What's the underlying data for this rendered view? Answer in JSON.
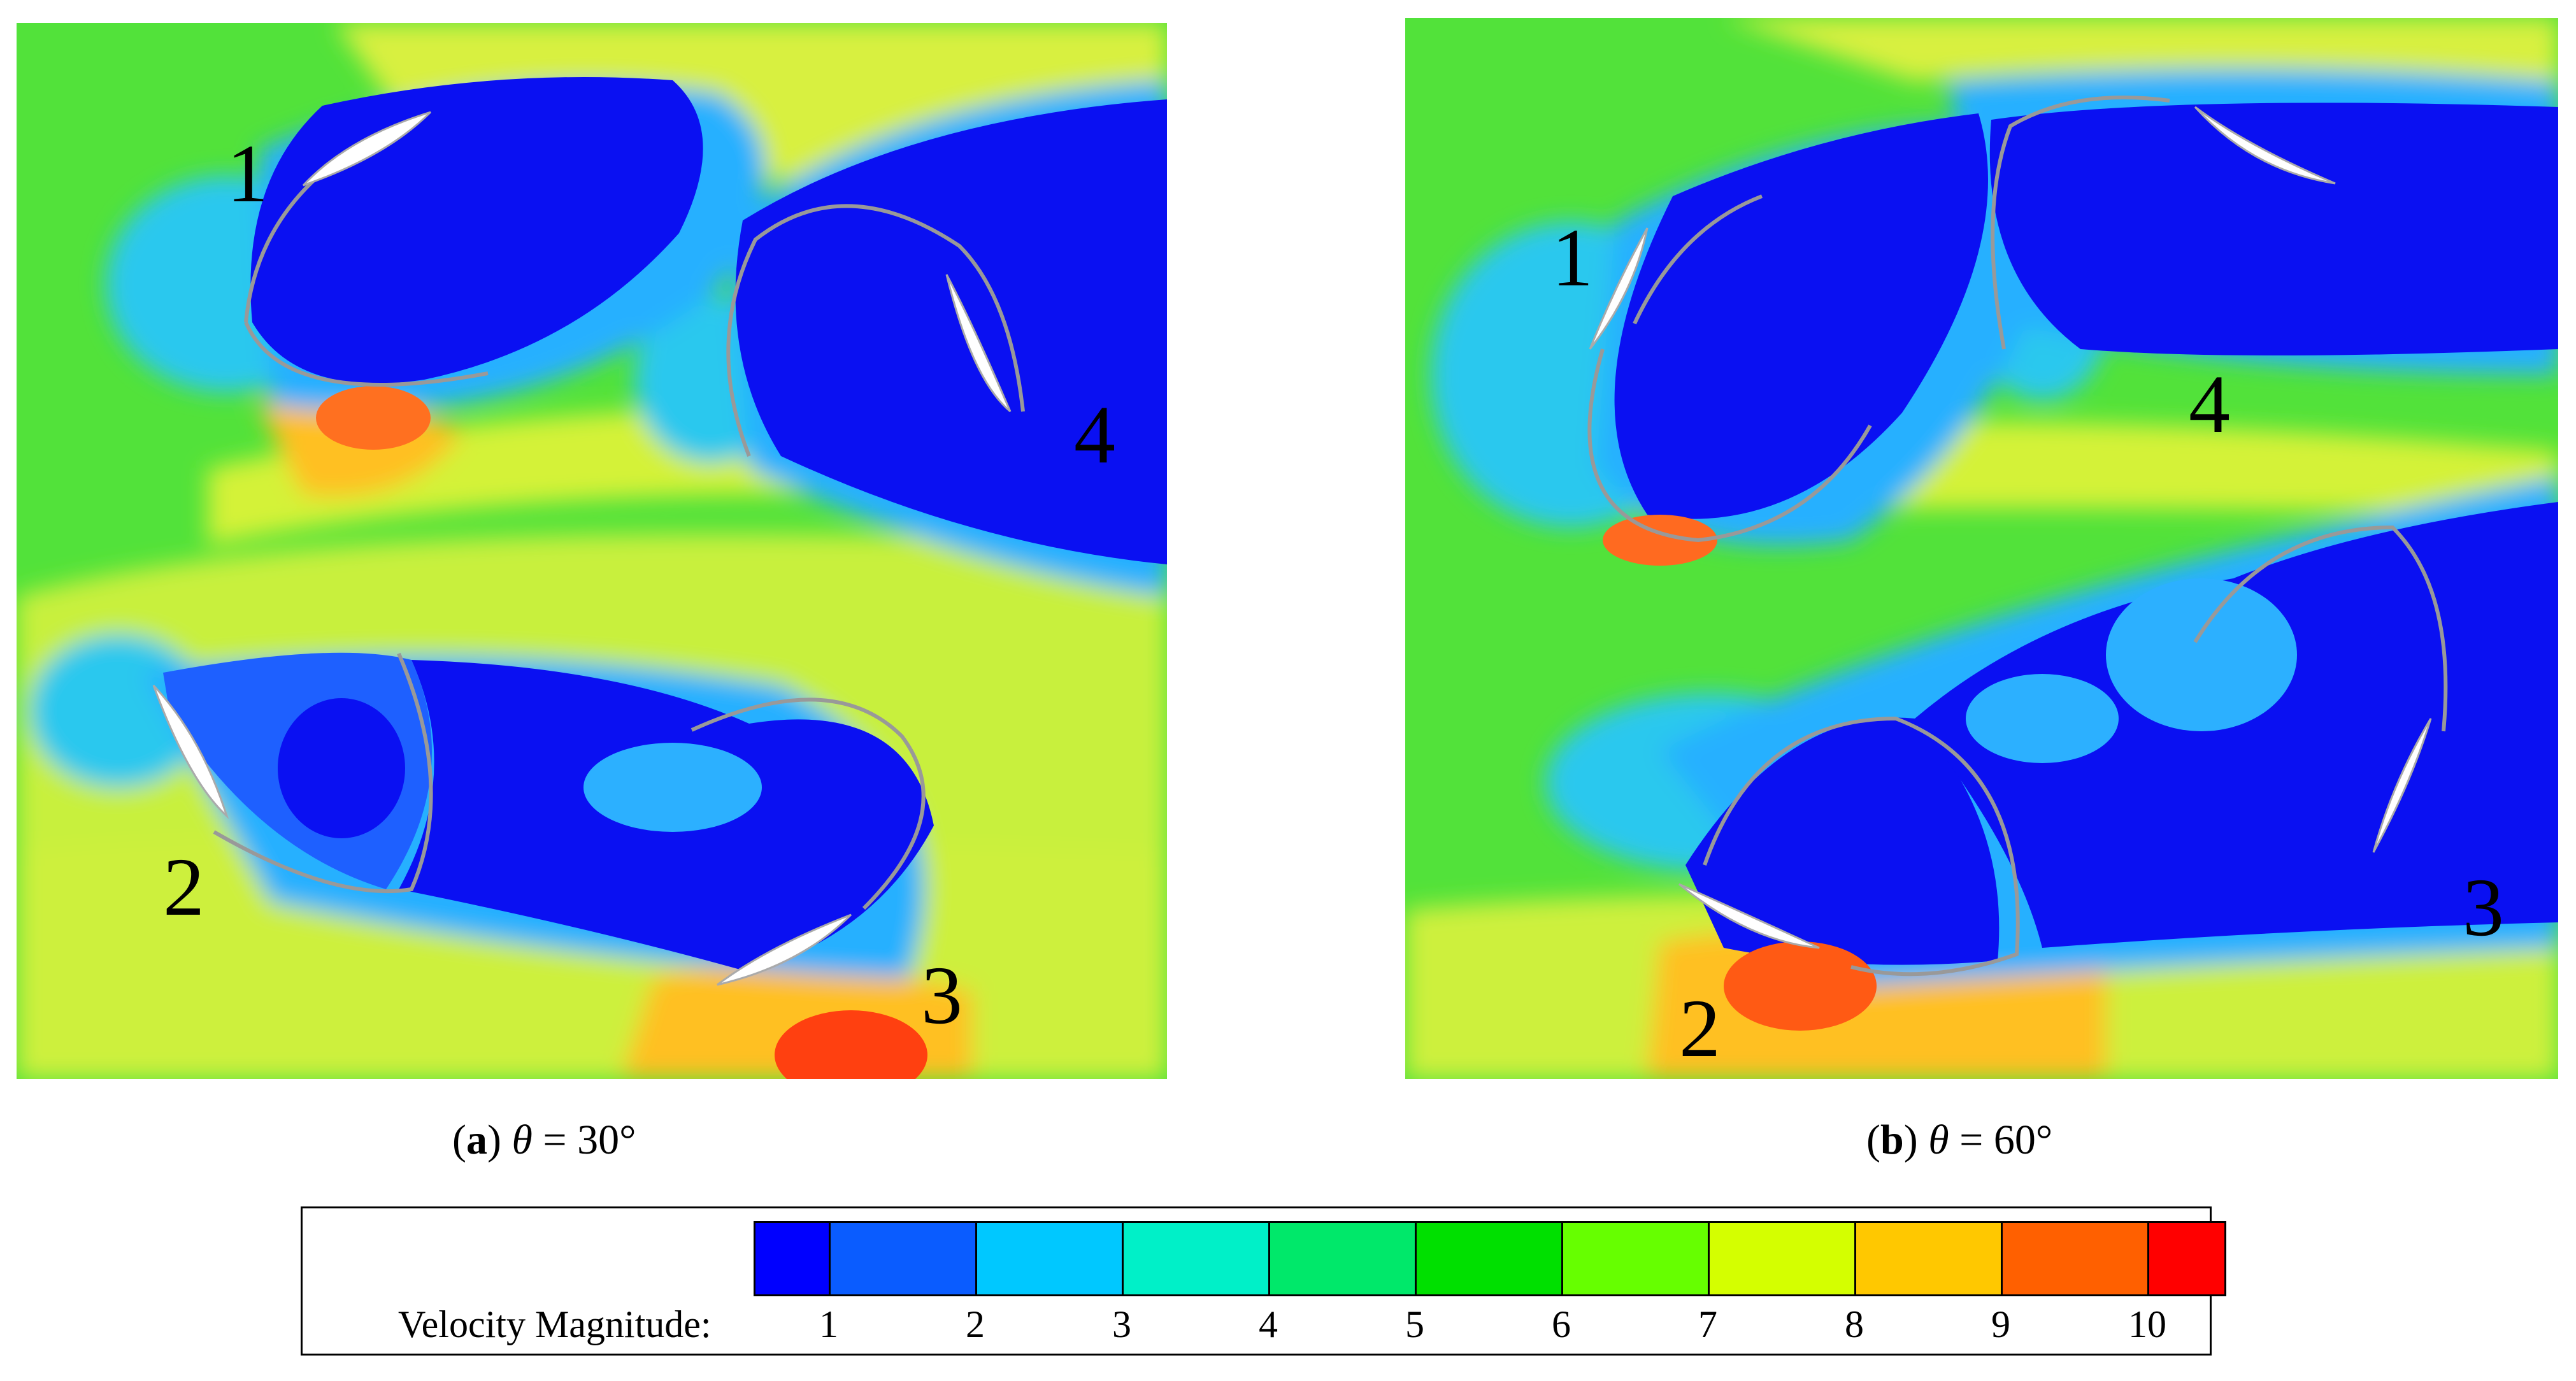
{
  "panels": [
    {
      "tag": "a",
      "variable": "θ",
      "value": "= 30°",
      "blade_labels": [
        "1",
        "2",
        "3",
        "4"
      ]
    },
    {
      "tag": "b",
      "variable": "θ",
      "value": "= 60°",
      "blade_labels": [
        "1",
        "2",
        "3",
        "4"
      ]
    }
  ],
  "legend": {
    "title": "Velocity Magnitude:",
    "ticks": [
      "1",
      "2",
      "3",
      "4",
      "5",
      "6",
      "7",
      "8",
      "9",
      "10"
    ],
    "colors": [
      "#0000ff",
      "#0a5cff",
      "#00c8ff",
      "#00f0c8",
      "#00e86a",
      "#00e000",
      "#66ff00",
      "#d4ff00",
      "#ffc800",
      "#ff6000",
      "#ff0000"
    ]
  },
  "colors": {
    "deep_blue": "#0a10f2",
    "mid_blue": "#1c6cff",
    "cyan": "#2ac8f0",
    "green": "#22e05a",
    "bright_green": "#33ee33",
    "yellow_green": "#c8f03c",
    "yellow": "#e8f23a",
    "orange": "#ffb020",
    "red": "#ff3a10",
    "blade": "#ffffff",
    "path": "#999999"
  }
}
